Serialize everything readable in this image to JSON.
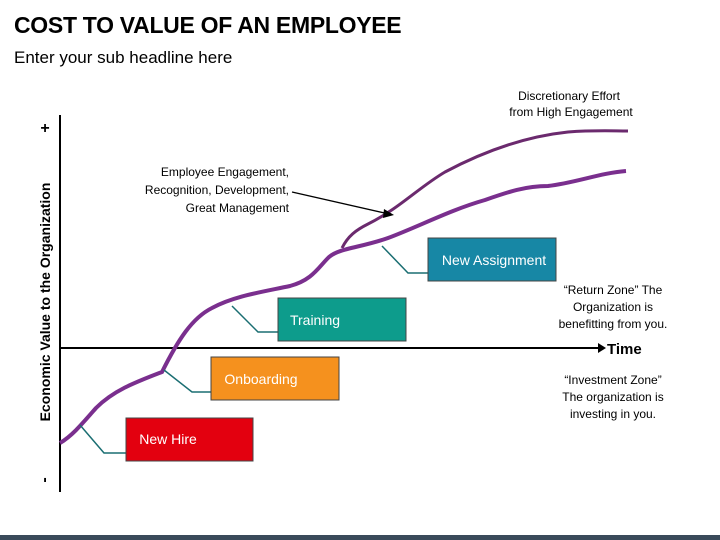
{
  "title": "COST TO VALUE OF AN EMPLOYEE",
  "subtitle": "Enter your sub headline here",
  "axes": {
    "y_label": "Economic Value to the Organization",
    "y_plus": "+",
    "y_minus": "-",
    "x_label": "Time"
  },
  "stages": [
    {
      "label": "New Hire",
      "color": "#e3000f"
    },
    {
      "label": "Onboarding",
      "color": "#f5911e"
    },
    {
      "label": "Training",
      "color": "#0d9c8c"
    },
    {
      "label": "New Assignment",
      "color": "#1787a5"
    }
  ],
  "annotations": {
    "discretionary": [
      "Discretionary Effort",
      "from High Engagement"
    ],
    "engagement": [
      "Employee Engagement,",
      "Recognition, Development,",
      "Great Management"
    ],
    "return_zone": [
      "“Return Zone” The",
      "Organization is",
      "benefitting from you."
    ],
    "investment_zone": [
      "“Investment Zone”",
      "The organization is",
      "investing in you."
    ]
  },
  "colors": {
    "curve": "#7a2f8e",
    "curve_upper": "#6b2a6e",
    "axis": "#000000",
    "connector": "#1a6e72"
  }
}
